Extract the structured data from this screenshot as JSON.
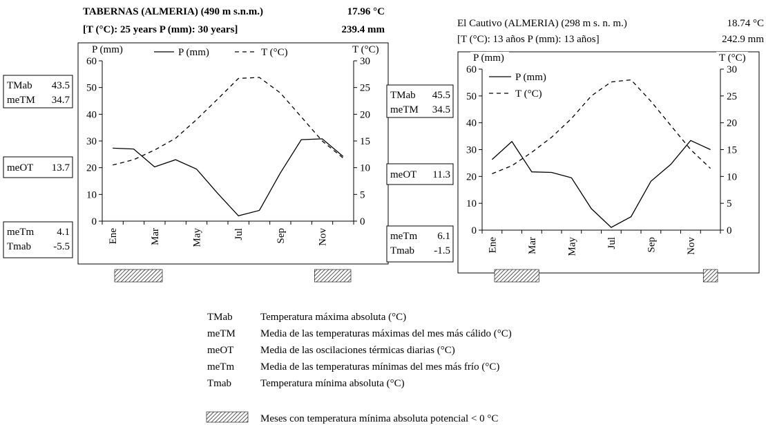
{
  "chart_data": [
    {
      "type": "line",
      "station_name": "TABERNAS (ALMERIA) (490 m s.n.m.)",
      "subtitle": "[T (°C): 25 years    P (mm): 30 years]",
      "mean_temp": "17.96 °C",
      "annual_precip": "239.4 mm",
      "left_axis_label": "P (mm)",
      "right_axis_label": "T (°C)",
      "left_ticks": [
        "0",
        "10",
        "20",
        "30",
        "40",
        "50",
        "60"
      ],
      "right_ticks": [
        "0",
        "5",
        "10",
        "15",
        "20",
        "25",
        "30"
      ],
      "ylim": [
        0,
        60
      ],
      "ylim_right": [
        0,
        30
      ],
      "x_tick_labels": [
        "Ene",
        "Mar",
        "May",
        "Jul",
        "Sep",
        "Nov"
      ],
      "x_tick_months": [
        1,
        3,
        5,
        7,
        9,
        11
      ],
      "series": [
        {
          "name": "P (mm)",
          "axis": "left",
          "style": "solid",
          "values": [
            27.3,
            27.0,
            20.3,
            23.0,
            19.5,
            10.5,
            2.0,
            4.0,
            18.0,
            30.5,
            30.8,
            24.2
          ]
        },
        {
          "name": "T (°C)",
          "axis": "right",
          "style": "dashed",
          "values": [
            10.5,
            11.5,
            13.3,
            15.5,
            19.0,
            22.8,
            26.7,
            26.9,
            24.0,
            19.5,
            15.0,
            11.8
          ]
        }
      ],
      "legend_position": "top",
      "stats": [
        {
          "label": "TMab",
          "value": "43.5"
        },
        {
          "label": "meTM",
          "value": "34.7"
        },
        {
          "label": "meOT",
          "value": "13.7"
        },
        {
          "label": "meTm",
          "value": "4.1"
        },
        {
          "label": "Tmab",
          "value": "-5.5"
        }
      ],
      "frost_months": [
        1,
        2,
        3,
        11,
        12
      ]
    },
    {
      "type": "line",
      "station_name": "El Cautivo (ALMERIA) (298 m s. n. m.)",
      "subtitle": "[T (°C): 13 años    P (mm): 13 años]",
      "mean_temp": "18.74 °C",
      "annual_precip": "242.9 mm",
      "left_axis_label": "P (mm)",
      "right_axis_label": "T (°C)",
      "left_ticks": [
        "0",
        "10",
        "20",
        "30",
        "40",
        "50",
        "60"
      ],
      "right_ticks": [
        "0",
        "5",
        "10",
        "15",
        "20",
        "25",
        "30"
      ],
      "ylim": [
        0,
        60
      ],
      "ylim_right": [
        0,
        30
      ],
      "x_tick_labels": [
        "Ene",
        "Mar",
        "May",
        "Jul",
        "Sep",
        "Nov"
      ],
      "x_tick_months": [
        1,
        3,
        5,
        7,
        9,
        11
      ],
      "series": [
        {
          "name": "P (mm)",
          "axis": "left",
          "style": "solid",
          "values": [
            26.3,
            33.0,
            21.7,
            21.5,
            19.5,
            8.0,
            1.0,
            5.0,
            18.2,
            24.5,
            33.4,
            30.0
          ]
        },
        {
          "name": "T (°C)",
          "axis": "right",
          "style": "dashed",
          "values": [
            10.5,
            12.0,
            14.5,
            17.3,
            20.8,
            25.0,
            27.6,
            28.0,
            24.0,
            19.5,
            15.0,
            11.5
          ]
        }
      ],
      "legend_position": "top-left",
      "stats": [
        {
          "label": "TMab",
          "value": "45.5"
        },
        {
          "label": "meTM",
          "value": "34.5"
        },
        {
          "label": "meOT",
          "value": "11.3"
        },
        {
          "label": "meTm",
          "value": "6.1"
        },
        {
          "label": "Tmab",
          "value": "-1.5"
        }
      ],
      "frost_months": [
        1,
        2,
        3,
        12
      ]
    }
  ],
  "glossary": [
    {
      "abbr": "TMab",
      "text": "Temperatura máxima absoluta  (°C)"
    },
    {
      "abbr": "meTM",
      "text": "Media de las temperaturas máximas del mes más cálido  (°C)"
    },
    {
      "abbr": "meOT",
      "text": "Media de las oscilaciones térmicas diarias  (°C)"
    },
    {
      "abbr": "meTm",
      "text": "Media de las temperaturas mínimas del mes más frío  (°C)"
    },
    {
      "abbr": "Tmab",
      "text": "Temperatura mínima absoluta  (°C)"
    }
  ],
  "hatch_legend": "Meses con temperatura mínima absoluta potencial < 0 °C"
}
